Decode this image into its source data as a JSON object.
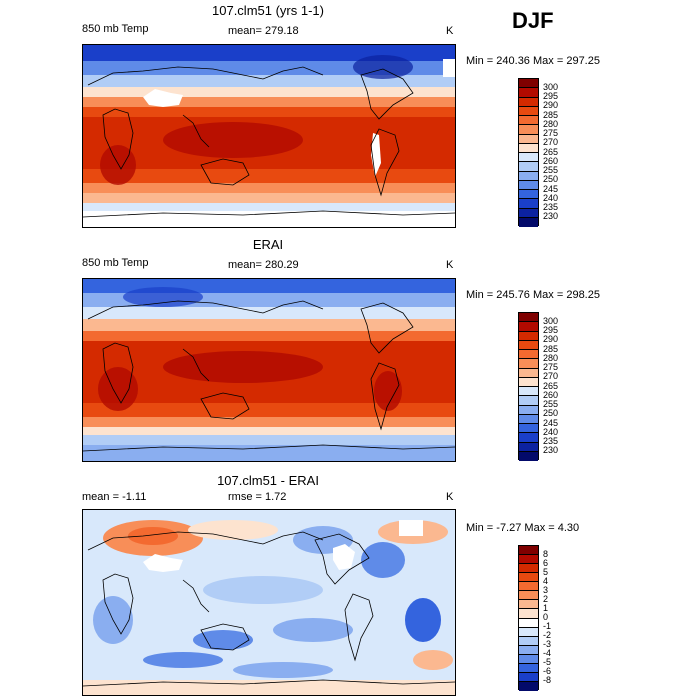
{
  "season": "DJF",
  "chart_data": [
    {
      "type": "heatmap",
      "title": "107.clm51 (yrs 1-1)",
      "variable": "850 mb Temp",
      "mean_label": "mean=",
      "mean": "279.18",
      "units": "K",
      "min_label": "Min =",
      "min": "240.36",
      "max_label": "Max =",
      "max": "297.25",
      "colorbar_levels": [
        "300",
        "295",
        "290",
        "285",
        "280",
        "275",
        "270",
        "265",
        "260",
        "255",
        "250",
        "245",
        "240",
        "235",
        "230"
      ],
      "colorbar_colors": [
        "#7f0000",
        "#b20a00",
        "#d42a00",
        "#e84a10",
        "#f36a30",
        "#f88e58",
        "#fbb890",
        "#fde3cf",
        "#d8e8fb",
        "#b1cdf6",
        "#8aaef0",
        "#5f8be8",
        "#3464de",
        "#1a3fc9",
        "#0c22a0",
        "#030a6a"
      ]
    },
    {
      "type": "heatmap",
      "title": "ERAI",
      "variable": "850 mb Temp",
      "mean_label": "mean=",
      "mean": "280.29",
      "units": "K",
      "min_label": "Min =",
      "min": "245.76",
      "max_label": "Max =",
      "max": "298.25",
      "colorbar_levels": [
        "300",
        "295",
        "290",
        "285",
        "280",
        "275",
        "270",
        "265",
        "260",
        "255",
        "250",
        "245",
        "240",
        "235",
        "230"
      ],
      "colorbar_colors": [
        "#7f0000",
        "#b20a00",
        "#d42a00",
        "#e84a10",
        "#f36a30",
        "#f88e58",
        "#fbb890",
        "#fde3cf",
        "#d8e8fb",
        "#b1cdf6",
        "#8aaef0",
        "#5f8be8",
        "#3464de",
        "#1a3fc9",
        "#0c22a0",
        "#030a6a"
      ]
    },
    {
      "type": "heatmap",
      "title": "107.clm51 - ERAI",
      "mean_label": "mean =",
      "mean": "-1.11",
      "rmse_label": "rmse =",
      "rmse": "1.72",
      "units": "K",
      "min_label": "Min =",
      "min": "-7.27",
      "max_label": "Max =",
      "max": "4.30",
      "colorbar_levels": [
        "8",
        "6",
        "5",
        "4",
        "3",
        "2",
        "1",
        "0",
        "-1",
        "-2",
        "-3",
        "-4",
        "-5",
        "-6",
        "-8"
      ],
      "colorbar_colors": [
        "#7f0000",
        "#b20a00",
        "#d42a00",
        "#e84a10",
        "#f36a30",
        "#f88e58",
        "#fbb890",
        "#fde3cf",
        "#ffffff",
        "#d8e8fb",
        "#b1cdf6",
        "#8aaef0",
        "#5f8be8",
        "#3464de",
        "#1a3fc9",
        "#030a6a"
      ]
    }
  ]
}
